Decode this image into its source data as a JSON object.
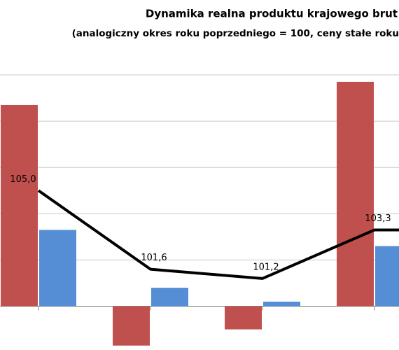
{
  "chart_data": {
    "type": "bar",
    "title": "Dynamika realna produktu krajowego brut",
    "subtitle": "(analogiczny okres roku poprzedniego = 100, ceny stałe roku",
    "categories": [
      null,
      null,
      null,
      null
    ],
    "ylim": [
      98.2,
      110
    ],
    "yticks": [
      100,
      102,
      104,
      106,
      108,
      110
    ],
    "grid": true,
    "series": [
      {
        "type": "bar",
        "color": "#c0504d",
        "values": [
          108.7,
          98.3,
          99.0,
          109.7
        ]
      },
      {
        "type": "bar",
        "color": "#558ed5",
        "values": [
          103.3,
          100.8,
          100.2,
          102.6
        ]
      },
      {
        "type": "line",
        "color": "#000000",
        "values": [
          105.0,
          101.6,
          101.2,
          103.3
        ],
        "value_labels": [
          "105,0",
          "101,6",
          "101,2",
          "103,3"
        ]
      }
    ]
  }
}
